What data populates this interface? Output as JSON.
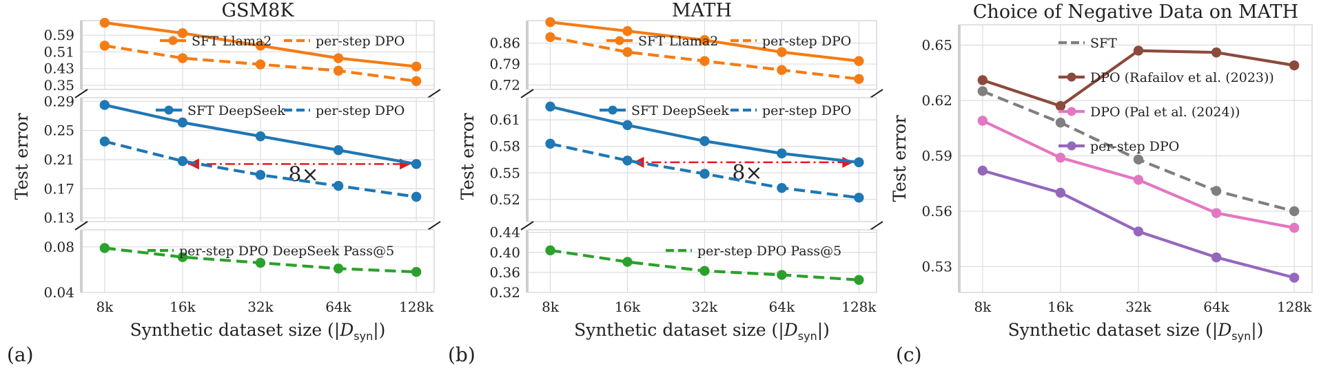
{
  "chart_data": [
    {
      "type": "line",
      "panel_label": "(a)",
      "title": "GSM8K",
      "xlabel": "Synthetic dataset size (|D_syn|)",
      "ylabel": "Test error",
      "x": [
        8,
        16,
        32,
        64,
        128
      ],
      "x_tick_labels": [
        "8k",
        "16k",
        "32k",
        "64k",
        "128k"
      ],
      "broken_axis": true,
      "subplots": [
        {
          "ylim": [
            0.33,
            0.66
          ],
          "y_ticks": [
            0.35,
            0.43,
            0.51,
            0.59
          ],
          "y_tick_labels": [
            "0.35",
            "0.43",
            "0.51",
            "0.59"
          ],
          "series": [
            {
              "name": "SFT Llama2",
              "color": "#f57c14",
              "dashed": false,
              "values": [
                0.65,
                0.6,
                0.54,
                0.48,
                0.44
              ]
            },
            {
              "name": "per-step DPO",
              "color": "#f57c14",
              "dashed": true,
              "values": [
                0.54,
                0.48,
                0.45,
                0.42,
                0.37
              ]
            }
          ]
        },
        {
          "ylim": [
            0.125,
            0.295
          ],
          "y_ticks": [
            0.13,
            0.17,
            0.21,
            0.25,
            0.29
          ],
          "y_tick_labels": [
            "0.13",
            "0.17",
            "0.21",
            "0.25",
            "0.29"
          ],
          "series": [
            {
              "name": "SFT DeepSeek",
              "color": "#1f77b4",
              "dashed": false,
              "values": [
                0.285,
                0.261,
                0.242,
                0.223,
                0.204
              ]
            },
            {
              "name": "per-step DPO",
              "color": "#1f77b4",
              "dashed": true,
              "values": [
                0.235,
                0.208,
                0.189,
                0.174,
                0.159
              ]
            }
          ],
          "annotation": {
            "text": "8×",
            "from_x": 16,
            "to_x": 128,
            "y": 0.204,
            "color": "#e01b1b"
          }
        },
        {
          "ylim": [
            0.04,
            0.095
          ],
          "y_ticks": [
            0.04,
            0.08
          ],
          "y_tick_labels": [
            "0.04",
            "0.08"
          ],
          "series": [
            {
              "name": "per-step DPO DeepSeek Pass@5",
              "color": "#2ca02c",
              "dashed": true,
              "values": [
                0.079,
                0.071,
                0.066,
                0.061,
                0.058
              ]
            }
          ]
        }
      ]
    },
    {
      "type": "line",
      "panel_label": "(b)",
      "title": "MATH",
      "xlabel": "Synthetic dataset size (|D_syn|)",
      "ylabel": "Test error",
      "x": [
        8,
        16,
        32,
        64,
        128
      ],
      "x_tick_labels": [
        "8k",
        "16k",
        "32k",
        "64k",
        "128k"
      ],
      "broken_axis": true,
      "subplots": [
        {
          "ylim": [
            0.705,
            0.935
          ],
          "y_ticks": [
            0.72,
            0.79,
            0.86
          ],
          "y_tick_labels": [
            "0.72",
            "0.79",
            "0.86"
          ],
          "series": [
            {
              "name": "SFT Llama2",
              "color": "#f57c14",
              "dashed": false,
              "values": [
                0.93,
                0.9,
                0.87,
                0.83,
                0.8
              ]
            },
            {
              "name": "per-step DPO",
              "color": "#f57c14",
              "dashed": true,
              "values": [
                0.88,
                0.83,
                0.8,
                0.77,
                0.74
              ]
            }
          ]
        },
        {
          "ylim": [
            0.495,
            0.635
          ],
          "y_ticks": [
            0.52,
            0.55,
            0.58,
            0.61
          ],
          "y_tick_labels": [
            "0.52",
            "0.55",
            "0.58",
            "0.61"
          ],
          "series": [
            {
              "name": "SFT DeepSeek",
              "color": "#1f77b4",
              "dashed": false,
              "values": [
                0.625,
                0.604,
                0.586,
                0.572,
                0.562
              ]
            },
            {
              "name": "per-step DPO",
              "color": "#1f77b4",
              "dashed": true,
              "values": [
                0.583,
                0.564,
                0.549,
                0.533,
                0.522
              ]
            }
          ],
          "annotation": {
            "text": "8×",
            "from_x": 16,
            "to_x": 128,
            "y": 0.562,
            "color": "#e01b1b"
          }
        },
        {
          "ylim": [
            0.32,
            0.445
          ],
          "y_ticks": [
            0.32,
            0.36,
            0.4,
            0.44
          ],
          "y_tick_labels": [
            "0.32",
            "0.36",
            "0.40",
            "0.44"
          ],
          "series": [
            {
              "name": "per-step DPO Pass@5",
              "color": "#2ca02c",
              "dashed": true,
              "values": [
                0.404,
                0.381,
                0.363,
                0.355,
                0.345
              ]
            }
          ]
        }
      ]
    },
    {
      "type": "line",
      "panel_label": "(c)",
      "title": "Choice of Negative Data on MATH",
      "xlabel": "Synthetic dataset size (|D_syn|)",
      "ylabel": "Test error",
      "x": [
        8,
        16,
        32,
        64,
        128
      ],
      "x_tick_labels": [
        "8k",
        "16k",
        "32k",
        "64k",
        "128k"
      ],
      "ylim": [
        0.516,
        0.661
      ],
      "y_ticks": [
        0.53,
        0.56,
        0.59,
        0.62,
        0.65
      ],
      "y_tick_labels": [
        "0.53",
        "0.56",
        "0.59",
        "0.62",
        "0.65"
      ],
      "series": [
        {
          "name": "SFT",
          "color": "#7f7f7f",
          "dashed": true,
          "values": [
            0.625,
            0.608,
            0.588,
            0.571,
            0.56
          ]
        },
        {
          "name": "DPO (Rafailov et al. (2023))",
          "color": "#8c4a3c",
          "dashed": false,
          "values": [
            0.631,
            0.617,
            0.647,
            0.646,
            0.639
          ]
        },
        {
          "name": "DPO (Pal et al. (2024))",
          "color": "#e377c2",
          "dashed": false,
          "values": [
            0.609,
            0.589,
            0.577,
            0.559,
            0.551
          ]
        },
        {
          "name": "per-step DPO",
          "color": "#9467bd",
          "dashed": false,
          "values": [
            0.582,
            0.57,
            0.549,
            0.535,
            0.524
          ]
        }
      ]
    }
  ]
}
